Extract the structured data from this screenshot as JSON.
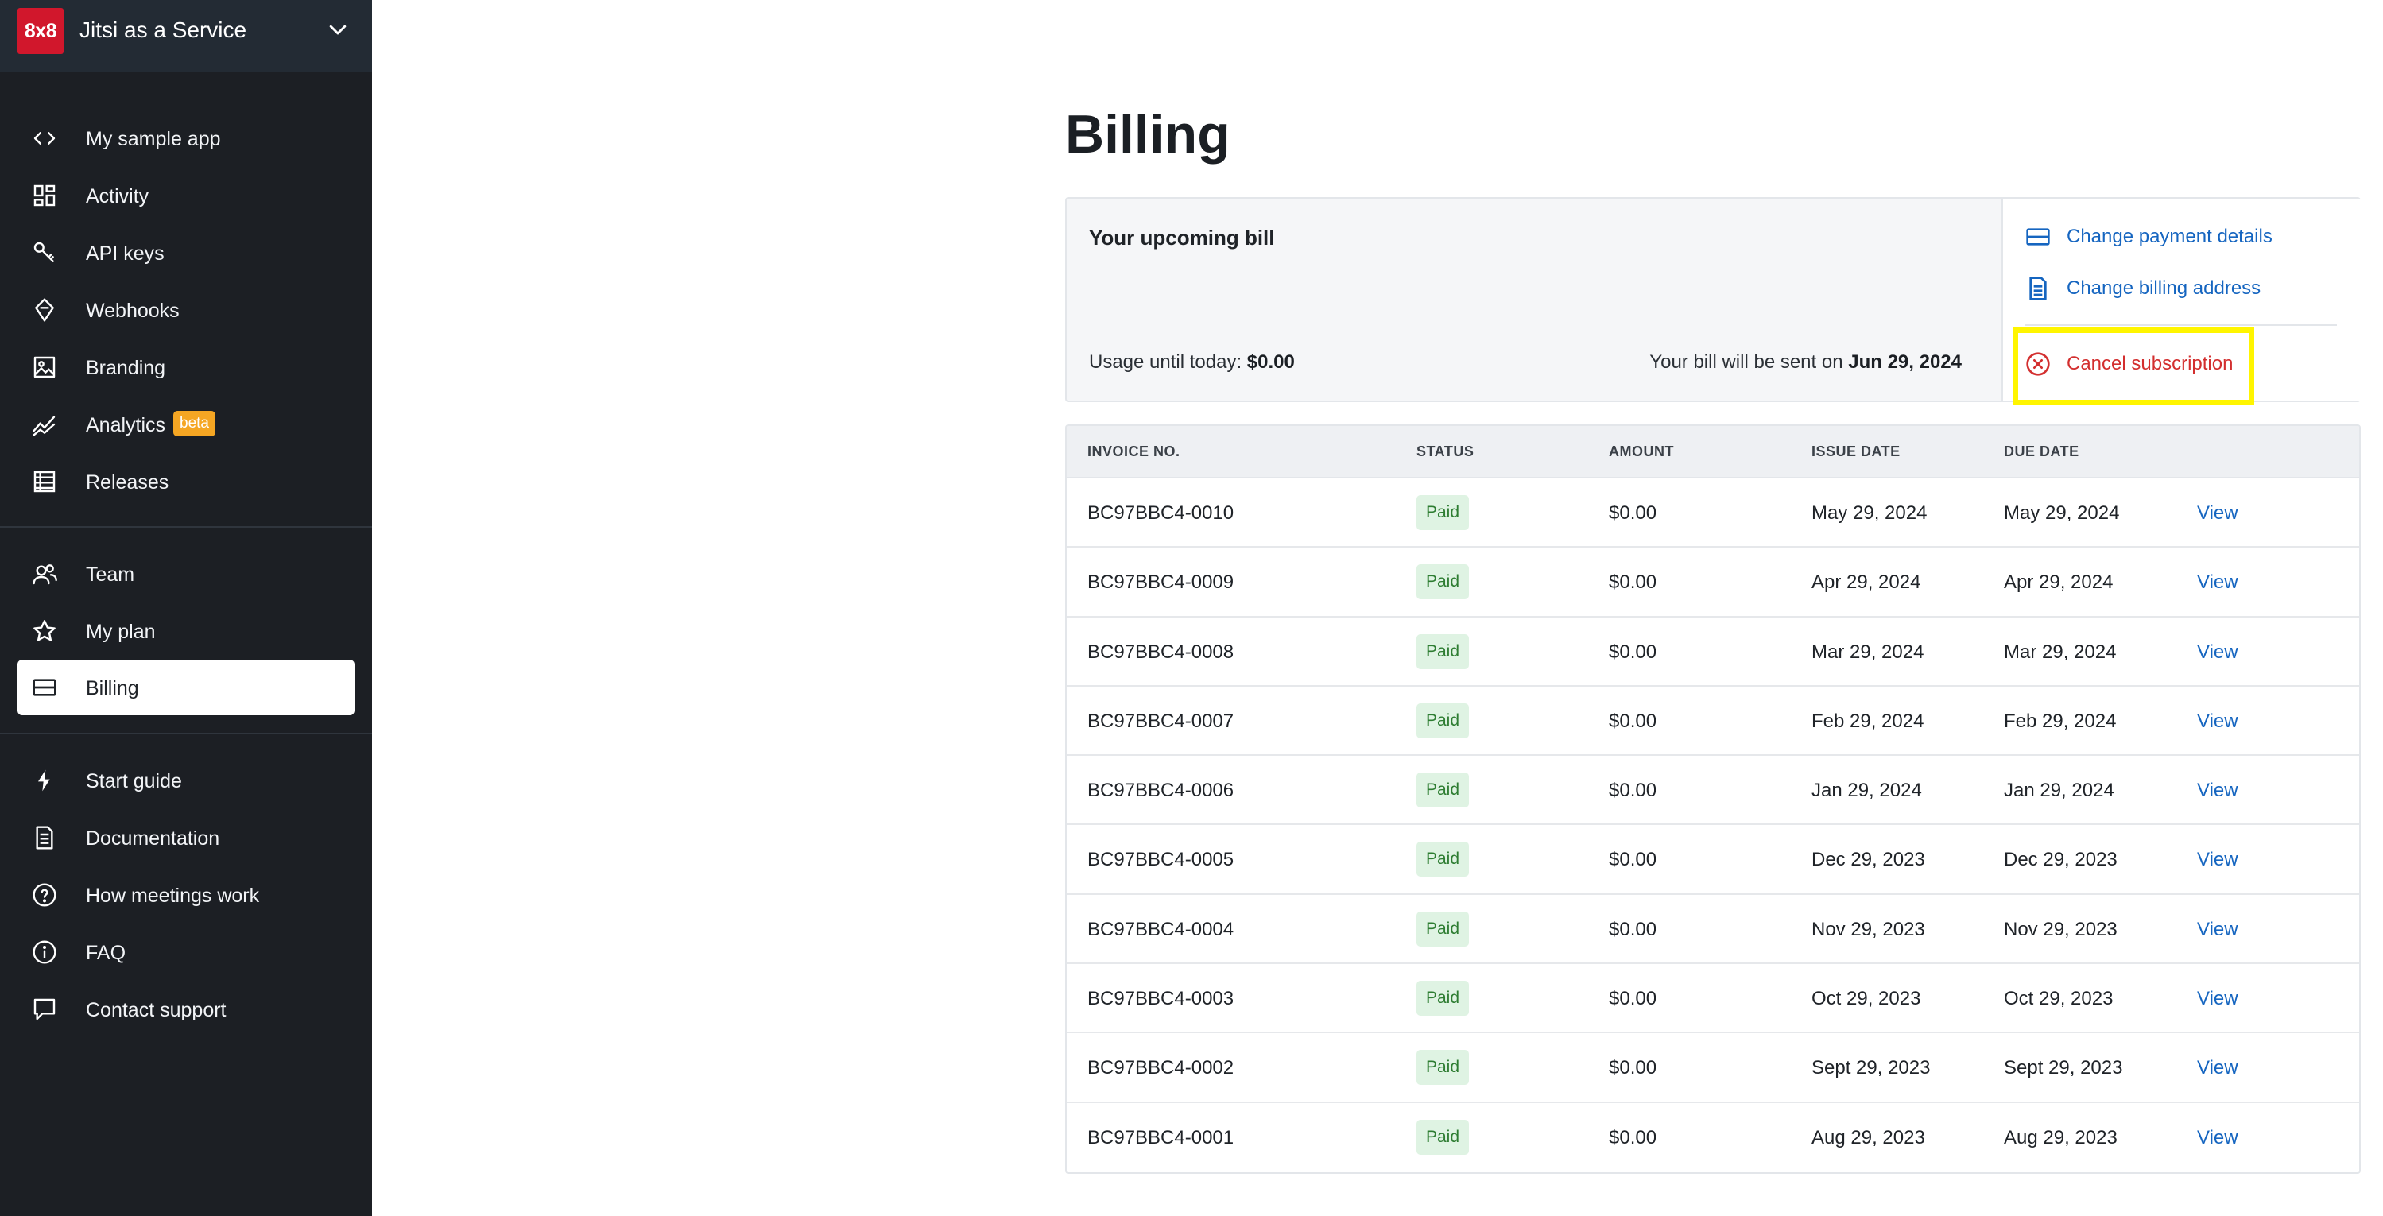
{
  "brand": {
    "logo_text": "8x8",
    "name": "Jitsi as a Service"
  },
  "sidebar": {
    "items": [
      {
        "label": "My sample app",
        "icon": "code-icon"
      },
      {
        "label": "Activity",
        "icon": "dashboard-icon"
      },
      {
        "label": "API keys",
        "icon": "key-icon"
      },
      {
        "label": "Webhooks",
        "icon": "webhook-icon"
      },
      {
        "label": "Branding",
        "icon": "image-icon"
      },
      {
        "label": "Analytics",
        "icon": "chart-line-icon",
        "badge": "beta"
      },
      {
        "label": "Releases",
        "icon": "list-icon"
      },
      {
        "label": "Team",
        "icon": "team-icon"
      },
      {
        "label": "My plan",
        "icon": "star-icon"
      },
      {
        "label": "Billing",
        "icon": "card-icon",
        "active": true
      },
      {
        "label": "Start guide",
        "icon": "bolt-icon"
      },
      {
        "label": "Documentation",
        "icon": "document-icon"
      },
      {
        "label": "How meetings work",
        "icon": "help-icon"
      },
      {
        "label": "FAQ",
        "icon": "info-icon"
      },
      {
        "label": "Contact support",
        "icon": "chat-icon"
      }
    ]
  },
  "page": {
    "title": "Billing"
  },
  "upcoming": {
    "title": "Your upcoming bill",
    "usage_label": "Usage until today:",
    "usage_value": "$0.00",
    "sent_label": "Your bill will be sent on",
    "sent_date": "Jun 29, 2024",
    "actions": {
      "change_payment": "Change payment details",
      "change_address": "Change billing address",
      "cancel": "Cancel subscription"
    }
  },
  "invoices": {
    "headers": {
      "invoice": "INVOICE NO.",
      "status": "STATUS",
      "amount": "AMOUNT",
      "issue": "ISSUE DATE",
      "due": "DUE DATE"
    },
    "view_label": "View",
    "rows": [
      {
        "no": "BC97BBC4-0010",
        "status": "Paid",
        "amount": "$0.00",
        "issue": "May 29, 2024",
        "due": "May 29, 2024"
      },
      {
        "no": "BC97BBC4-0009",
        "status": "Paid",
        "amount": "$0.00",
        "issue": "Apr 29, 2024",
        "due": "Apr 29, 2024"
      },
      {
        "no": "BC97BBC4-0008",
        "status": "Paid",
        "amount": "$0.00",
        "issue": "Mar 29, 2024",
        "due": "Mar 29, 2024"
      },
      {
        "no": "BC97BBC4-0007",
        "status": "Paid",
        "amount": "$0.00",
        "issue": "Feb 29, 2024",
        "due": "Feb 29, 2024"
      },
      {
        "no": "BC97BBC4-0006",
        "status": "Paid",
        "amount": "$0.00",
        "issue": "Jan 29, 2024",
        "due": "Jan 29, 2024"
      },
      {
        "no": "BC97BBC4-0005",
        "status": "Paid",
        "amount": "$0.00",
        "issue": "Dec 29, 2023",
        "due": "Dec 29, 2023"
      },
      {
        "no": "BC97BBC4-0004",
        "status": "Paid",
        "amount": "$0.00",
        "issue": "Nov 29, 2023",
        "due": "Nov 29, 2023"
      },
      {
        "no": "BC97BBC4-0003",
        "status": "Paid",
        "amount": "$0.00",
        "issue": "Oct 29, 2023",
        "due": "Oct 29, 2023"
      },
      {
        "no": "BC97BBC4-0002",
        "status": "Paid",
        "amount": "$0.00",
        "issue": "Sept 29, 2023",
        "due": "Sept 29, 2023"
      },
      {
        "no": "BC97BBC4-0001",
        "status": "Paid",
        "amount": "$0.00",
        "issue": "Aug 29, 2023",
        "due": "Aug 29, 2023"
      }
    ]
  },
  "colors": {
    "brand_red": "#d1172c",
    "link_blue": "#1565c0",
    "danger_red": "#d32f2f",
    "highlight_yellow": "#fff500",
    "paid_green": "#2e7d32"
  }
}
